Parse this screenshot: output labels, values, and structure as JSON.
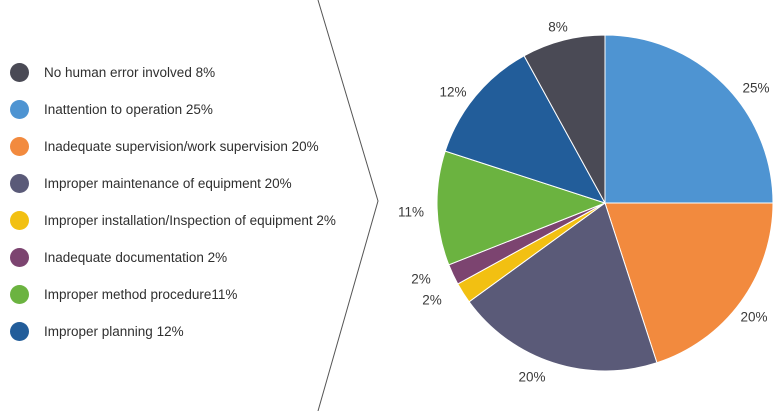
{
  "chart_data": {
    "type": "pie",
    "categories": [
      "No human error involved",
      "Inattention to operation",
      "Inadequate supervision/work supervision",
      "Improper maintenance of equipment",
      "Improper installation/Inspection of equipment",
      "Inadequate documentation",
      "Improper method procedure",
      "Improper planning"
    ],
    "values": [
      8,
      25,
      20,
      20,
      2,
      2,
      11,
      12
    ],
    "legend": [
      {
        "label": "No human error involved 8%",
        "color": "#4a4a55"
      },
      {
        "label": "Inattention to operation 25%",
        "color": "#4e94d2"
      },
      {
        "label": "Inadequate supervision/work supervision 20%",
        "color": "#f28a3e"
      },
      {
        "label": "Improper maintenance of equipment 20%",
        "color": "#5a5a78"
      },
      {
        "label": "Improper installation/Inspection of equipment 2%",
        "color": "#f2c012"
      },
      {
        "label": "Inadequate documentation 2%",
        "color": "#7c4470"
      },
      {
        "label": "Improper method procedure11%",
        "color": "#6bb340"
      },
      {
        "label": "Improper planning 12%",
        "color": "#225d9a"
      }
    ],
    "slices": [
      {
        "value": 25,
        "label": "25%",
        "color": "#4e94d2"
      },
      {
        "value": 20,
        "label": "20%",
        "color": "#f28a3e"
      },
      {
        "value": 20,
        "label": "20%",
        "color": "#5a5a78"
      },
      {
        "value": 2,
        "label": "2%",
        "color": "#f2c012"
      },
      {
        "value": 2,
        "label": "2%",
        "color": "#7c4470"
      },
      {
        "value": 11,
        "label": "11%",
        "color": "#6bb340"
      },
      {
        "value": 12,
        "label": "12%",
        "color": "#225d9a"
      },
      {
        "value": 8,
        "label": "8%",
        "color": "#4a4a55"
      }
    ],
    "legend_position": "left",
    "start": "12 o'clock, clockwise"
  }
}
